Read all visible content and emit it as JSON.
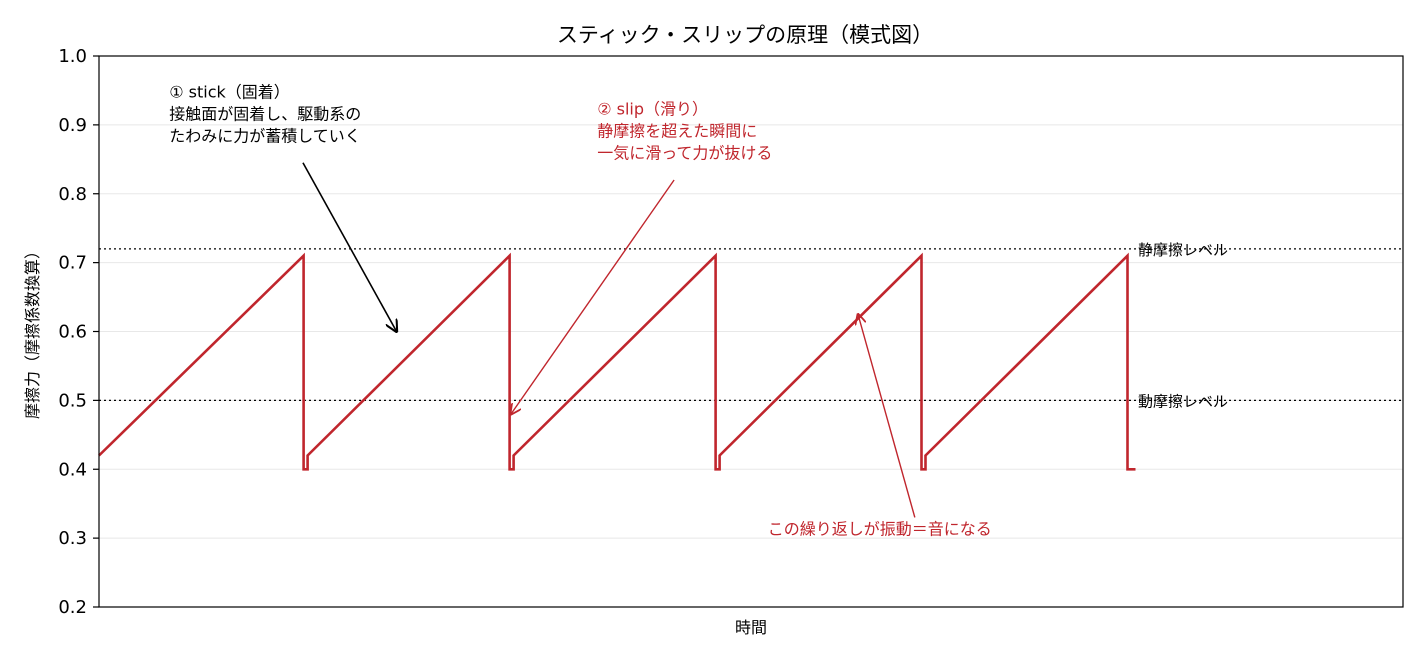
{
  "chart_data": {
    "type": "line",
    "title": "スティック・スリップの原理（模式図）",
    "xlabel": "時間",
    "ylabel": "摩擦力（摩擦係数換算）",
    "ylim": [
      0.2,
      1.0
    ],
    "yticks": [
      "0.2",
      "0.3",
      "0.4",
      "0.5",
      "0.6",
      "0.7",
      "0.8",
      "0.9",
      "1.0"
    ],
    "grid": true,
    "series": [
      {
        "color": "#c0262d",
        "points": [
          [
            0.0,
            0.42
          ],
          [
            3.06,
            0.71
          ],
          [
            3.06,
            0.4
          ],
          [
            3.12,
            0.4
          ],
          [
            3.12,
            0.42
          ],
          [
            6.14,
            0.71
          ],
          [
            6.14,
            0.4
          ],
          [
            6.2,
            0.4
          ],
          [
            6.2,
            0.42
          ],
          [
            9.22,
            0.71
          ],
          [
            9.22,
            0.4
          ],
          [
            9.28,
            0.4
          ],
          [
            9.28,
            0.42
          ],
          [
            12.3,
            0.71
          ],
          [
            12.3,
            0.4
          ],
          [
            12.36,
            0.4
          ],
          [
            12.36,
            0.42
          ],
          [
            15.38,
            0.71
          ],
          [
            15.38,
            0.4
          ],
          [
            15.5,
            0.4
          ]
        ]
      }
    ],
    "xlim": [
      0,
      19.5
    ],
    "reference_lines": [
      {
        "y": 0.72,
        "label": "静摩擦レベル"
      },
      {
        "y": 0.5,
        "label": "動摩擦レベル"
      }
    ],
    "annotations": [
      {
        "lines": [
          "① stick（固着）",
          "接触面が固着し、駆動系の",
          "たわみに力が蓄積していく"
        ],
        "color": "#000000",
        "text_at": [
          1.05,
          0.94
        ],
        "arrow_from": [
          3.05,
          0.845
        ],
        "arrow_to": [
          4.45,
          0.6
        ]
      },
      {
        "lines": [
          "② slip（滑り）",
          "静摩擦を超えた瞬間に",
          "一気に滑って力が抜ける"
        ],
        "color": "#c0262d",
        "text_at": [
          7.45,
          0.915
        ],
        "arrow_from": [
          8.6,
          0.82
        ],
        "arrow_to": [
          6.16,
          0.48
        ]
      },
      {
        "lines": [
          "この繰り返しが振動＝音になる"
        ],
        "color": "#c0262d",
        "text_at": [
          10.0,
          0.305
        ],
        "arrow_from": [
          12.2,
          0.33
        ],
        "arrow_to": [
          11.35,
          0.625
        ]
      }
    ]
  }
}
